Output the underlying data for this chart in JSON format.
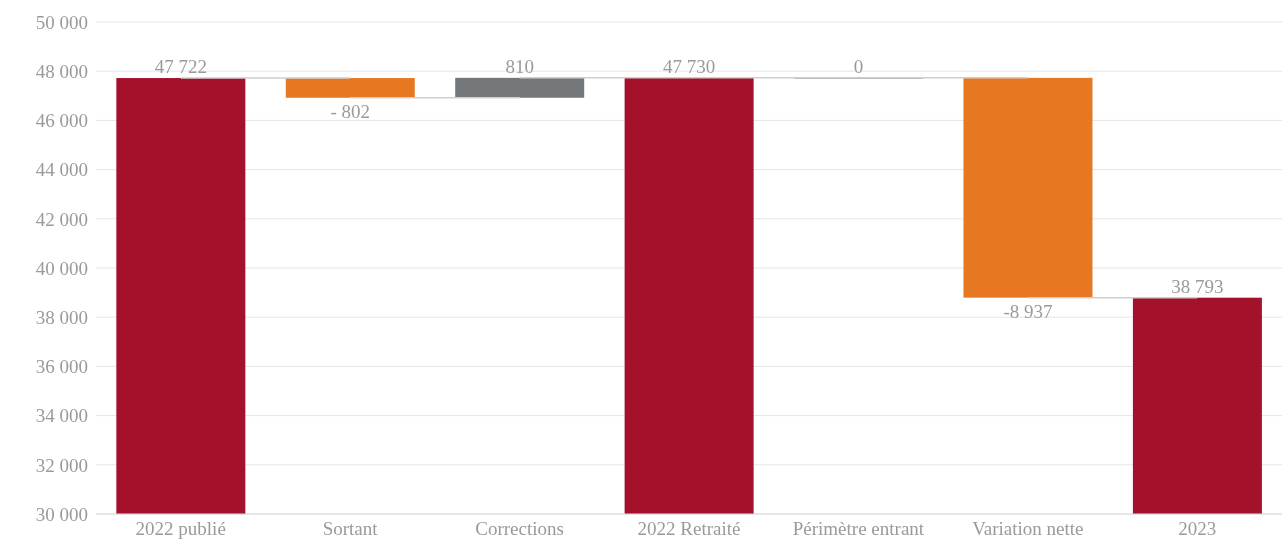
{
  "chart_data": {
    "type": "bar",
    "categories": [
      "2022 publié",
      "Sortant",
      "Corrections",
      "2022 Retraité",
      "Périmètre entrant",
      "Variation nette",
      "2023"
    ],
    "values": [
      47722,
      -802,
      810,
      47730,
      0,
      -8937,
      38793
    ],
    "base": [
      0,
      47722,
      46920,
      0,
      47730,
      47730,
      0
    ],
    "colors": [
      "#a3112a",
      "#e87722",
      "#75787b",
      "#a3112a",
      "#75787b",
      "#e87722",
      "#a3112a"
    ],
    "value_labels": [
      "47 722",
      "- 802",
      "810",
      "47 730",
      "0",
      "-8 937",
      "38 793"
    ],
    "ylim": [
      30000,
      50000
    ],
    "yticks": [
      {
        "value": 30000,
        "label": "30 000"
      },
      {
        "value": 32000,
        "label": "32 000"
      },
      {
        "value": 34000,
        "label": "34 000"
      },
      {
        "value": 36000,
        "label": "36 000"
      },
      {
        "value": 38000,
        "label": "38 000"
      },
      {
        "value": 40000,
        "label": "40 000"
      },
      {
        "value": 42000,
        "label": "42 000"
      },
      {
        "value": 44000,
        "label": "44 000"
      },
      {
        "value": 46000,
        "label": "46 000"
      },
      {
        "value": 48000,
        "label": "48 000"
      },
      {
        "value": 50000,
        "label": "50 000"
      }
    ],
    "grid": "y"
  }
}
